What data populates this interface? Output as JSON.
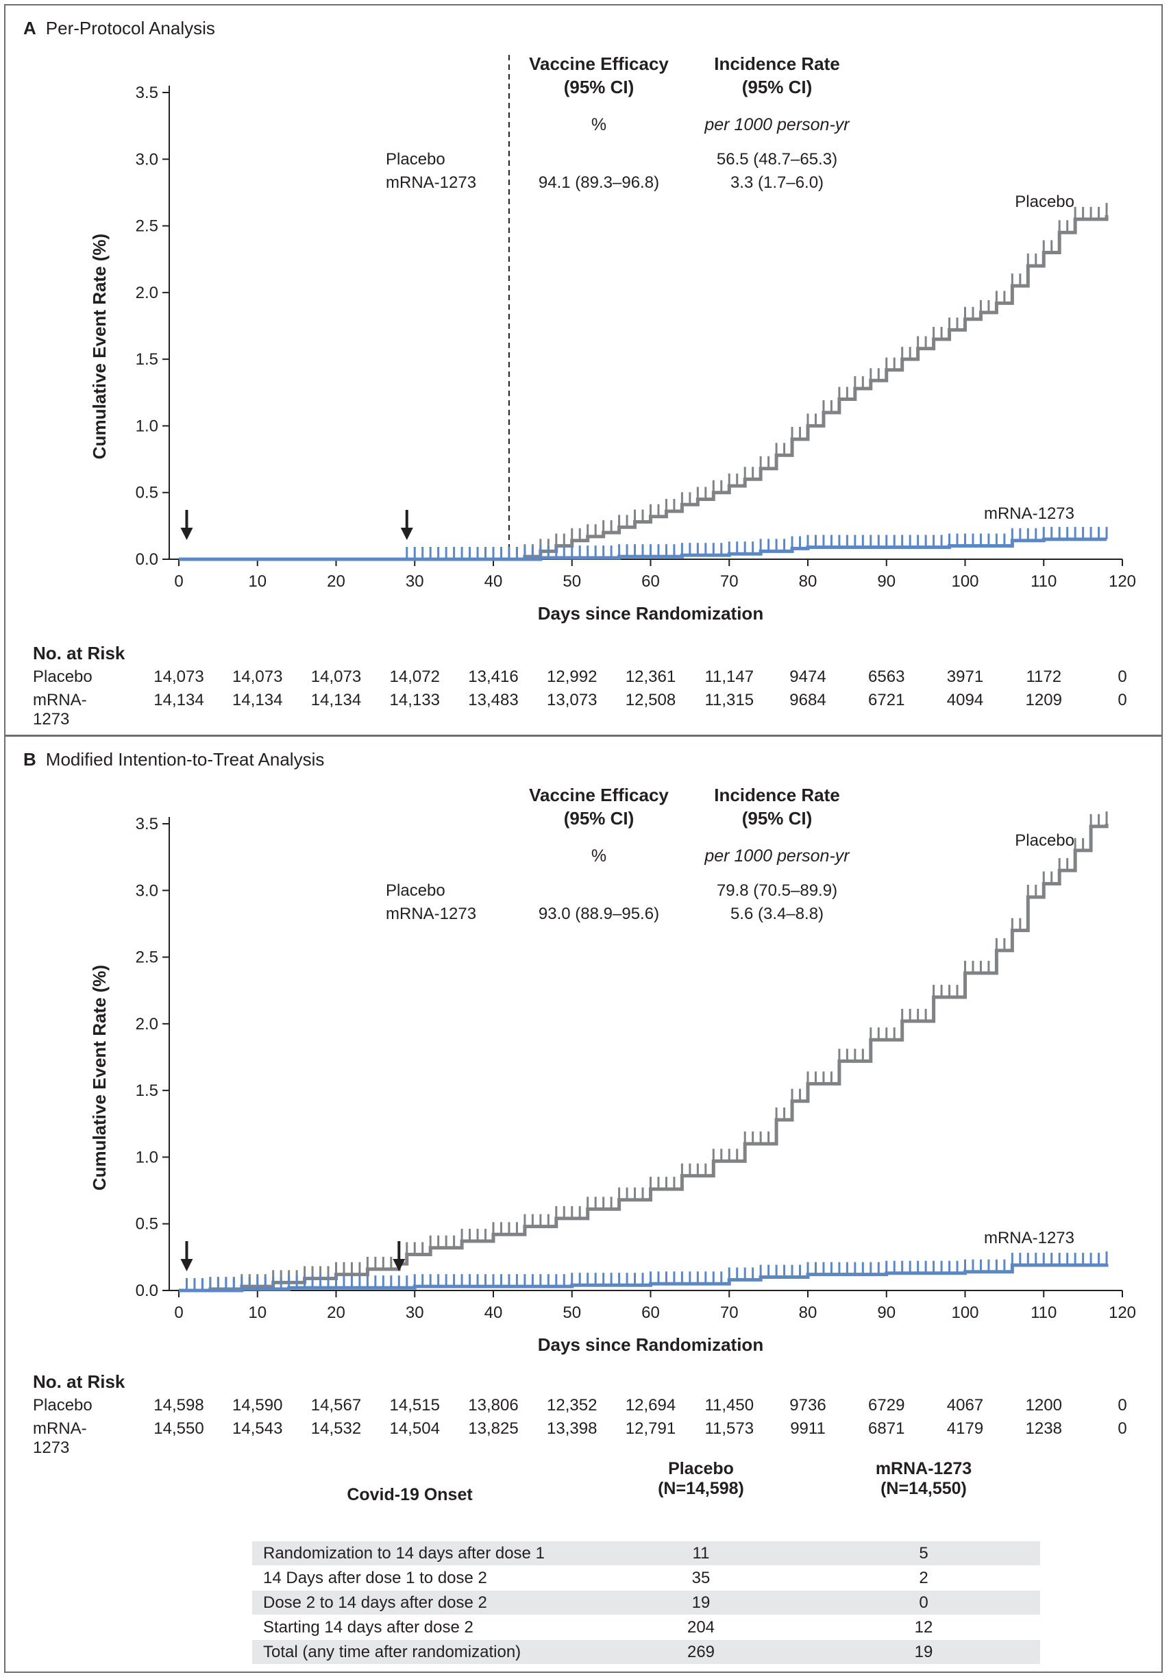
{
  "panels": [
    {
      "letter": "A",
      "title": "Per-Protocol Analysis",
      "y_axis_label": "Cumulative Event Rate (%)",
      "x_axis_label": "Days since Randomization",
      "efficacy": {
        "col1_header": [
          "Vaccine Efficacy",
          "(95% CI)"
        ],
        "col2_header": [
          "Incidence Rate",
          "(95% CI)"
        ],
        "col1_unit": "%",
        "col2_unit": "per 1000 person-yr",
        "rows": [
          {
            "group": "Placebo",
            "efficacy": "",
            "incidence": "56.5 (48.7–65.3)"
          },
          {
            "group": "mRNA-1273",
            "efficacy": "94.1 (89.3–96.8)",
            "incidence": "3.3 (1.7–6.0)"
          }
        ]
      },
      "at_risk": {
        "title": "No. at Risk",
        "rows": [
          {
            "group": "Placebo",
            "values": [
              "14,073",
              "14,073",
              "14,073",
              "14,072",
              "13,416",
              "12,992",
              "12,361",
              "11,147",
              "9474",
              "6563",
              "3971",
              "1172",
              "0"
            ]
          },
          {
            "group": "mRNA-1273",
            "values": [
              "14,134",
              "14,134",
              "14,134",
              "14,133",
              "13,483",
              "13,073",
              "12,508",
              "11,315",
              "9684",
              "6721",
              "4094",
              "1209",
              "0"
            ]
          }
        ]
      }
    },
    {
      "letter": "B",
      "title": "Modified Intention-to-Treat Analysis",
      "y_axis_label": "Cumulative Event Rate (%)",
      "x_axis_label": "Days since Randomization",
      "efficacy": {
        "col1_header": [
          "Vaccine Efficacy",
          "(95% CI)"
        ],
        "col2_header": [
          "Incidence Rate",
          "(95% CI)"
        ],
        "col1_unit": "%",
        "col2_unit": "per 1000 person-yr",
        "rows": [
          {
            "group": "Placebo",
            "efficacy": "",
            "incidence": "79.8 (70.5–89.9)"
          },
          {
            "group": "mRNA-1273",
            "efficacy": "93.0 (88.9–95.6)",
            "incidence": "5.6 (3.4–8.8)"
          }
        ]
      },
      "at_risk": {
        "title": "No. at Risk",
        "rows": [
          {
            "group": "Placebo",
            "values": [
              "14,598",
              "14,590",
              "14,567",
              "14,515",
              "13,806",
              "12,352",
              "12,694",
              "11,450",
              "9736",
              "6729",
              "4067",
              "1200",
              "0"
            ]
          },
          {
            "group": "mRNA-1273",
            "values": [
              "14,550",
              "14,543",
              "14,532",
              "14,504",
              "13,825",
              "13,398",
              "12,791",
              "11,573",
              "9911",
              "6871",
              "4179",
              "1238",
              "0"
            ]
          }
        ]
      },
      "onset_table": {
        "header": "Covid-19 Onset",
        "col1": [
          "Placebo",
          "(N=14,598)"
        ],
        "col2": [
          "mRNA-1273",
          "(N=14,550)"
        ],
        "rows": [
          {
            "label": "Randomization to 14 days after dose 1",
            "placebo": "11",
            "vaccine": "5"
          },
          {
            "label": "14 Days after dose 1 to dose 2",
            "placebo": "35",
            "vaccine": "2"
          },
          {
            "label": "Dose 2 to 14 days after dose 2",
            "placebo": "19",
            "vaccine": "0"
          },
          {
            "label": "Starting 14 days after dose 2",
            "placebo": "204",
            "vaccine": "12"
          },
          {
            "label": "Total (any time after randomization)",
            "placebo": "269",
            "vaccine": "19"
          }
        ]
      }
    }
  ],
  "chart_data": [
    {
      "type": "line",
      "title": "Per-Protocol Analysis",
      "xlabel": "Days since Randomization",
      "ylabel": "Cumulative Event Rate (%)",
      "xlim": [
        0,
        120
      ],
      "ylim": [
        0,
        3.5
      ],
      "x_ticks": [
        0,
        10,
        20,
        30,
        40,
        50,
        60,
        70,
        80,
        90,
        100,
        110,
        120
      ],
      "y_ticks": [
        "0.0",
        "0.5",
        "1.0",
        "1.5",
        "2.0",
        "2.5",
        "3.0",
        "3.5"
      ],
      "dose_arrows_days": [
        1,
        29
      ],
      "reference_line_day": 42,
      "colors": {
        "Placebo": "#808285",
        "mRNA-1273": "#5b87c5"
      },
      "series": [
        {
          "name": "Placebo",
          "censor_start": 42,
          "censor_end": 118,
          "x": [
            0,
            42,
            44,
            46,
            48,
            50,
            52,
            54,
            56,
            58,
            60,
            62,
            64,
            66,
            68,
            70,
            72,
            74,
            76,
            78,
            80,
            82,
            84,
            86,
            88,
            90,
            92,
            94,
            96,
            98,
            100,
            102,
            104,
            106,
            108,
            110,
            112,
            114,
            118
          ],
          "y": [
            0,
            0,
            0.02,
            0.06,
            0.1,
            0.14,
            0.17,
            0.2,
            0.24,
            0.28,
            0.32,
            0.36,
            0.41,
            0.45,
            0.5,
            0.55,
            0.6,
            0.68,
            0.78,
            0.9,
            1.0,
            1.1,
            1.2,
            1.28,
            1.34,
            1.42,
            1.5,
            1.58,
            1.65,
            1.72,
            1.8,
            1.85,
            1.92,
            2.05,
            2.2,
            2.3,
            2.45,
            2.55,
            2.58
          ]
        },
        {
          "name": "mRNA-1273",
          "censor_start": 29,
          "censor_end": 118,
          "x": [
            0,
            42,
            46,
            56,
            64,
            70,
            74,
            78,
            80,
            86,
            98,
            106,
            110,
            118
          ],
          "y": [
            0,
            0,
            0.01,
            0.02,
            0.03,
            0.04,
            0.06,
            0.08,
            0.09,
            0.09,
            0.1,
            0.14,
            0.15,
            0.15
          ]
        }
      ]
    },
    {
      "type": "line",
      "title": "Modified Intention-to-Treat Analysis",
      "xlabel": "Days since Randomization",
      "ylabel": "Cumulative Event Rate (%)",
      "xlim": [
        0,
        120
      ],
      "ylim": [
        0,
        3.5
      ],
      "x_ticks": [
        0,
        10,
        20,
        30,
        40,
        50,
        60,
        70,
        80,
        90,
        100,
        110,
        120
      ],
      "y_ticks": [
        "0.0",
        "0.5",
        "1.0",
        "1.5",
        "2.0",
        "2.5",
        "3.0",
        "3.5"
      ],
      "dose_arrows_days": [
        1,
        28
      ],
      "reference_line_day": null,
      "colors": {
        "Placebo": "#808285",
        "mRNA-1273": "#5b87c5"
      },
      "series": [
        {
          "name": "Placebo",
          "censor_start": 1,
          "censor_end": 118,
          "x": [
            0,
            4,
            8,
            12,
            16,
            20,
            24,
            28,
            29,
            32,
            36,
            40,
            44,
            48,
            52,
            56,
            60,
            64,
            68,
            72,
            76,
            78,
            80,
            84,
            88,
            92,
            96,
            100,
            104,
            106,
            108,
            110,
            112,
            114,
            116,
            118
          ],
          "y": [
            0,
            0.01,
            0.03,
            0.06,
            0.09,
            0.12,
            0.16,
            0.2,
            0.27,
            0.32,
            0.37,
            0.42,
            0.48,
            0.54,
            0.61,
            0.68,
            0.76,
            0.86,
            0.97,
            1.1,
            1.28,
            1.42,
            1.55,
            1.72,
            1.88,
            2.02,
            2.2,
            2.38,
            2.55,
            2.7,
            2.95,
            3.05,
            3.15,
            3.3,
            3.48,
            3.5
          ]
        },
        {
          "name": "mRNA-1273",
          "censor_start": 1,
          "censor_end": 118,
          "x": [
            0,
            8,
            14,
            30,
            50,
            60,
            70,
            74,
            80,
            90,
            100,
            106,
            118
          ],
          "y": [
            0,
            0.01,
            0.02,
            0.03,
            0.04,
            0.05,
            0.08,
            0.1,
            0.12,
            0.13,
            0.14,
            0.19,
            0.2
          ]
        }
      ]
    }
  ]
}
